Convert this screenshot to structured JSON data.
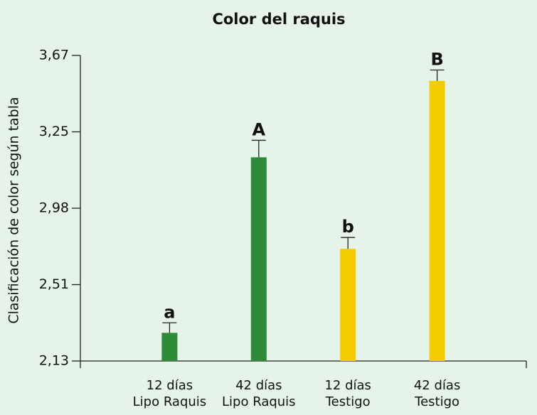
{
  "chart_data": {
    "type": "bar",
    "title": "Color del raquis",
    "y_label": "Clasificación de color según tabla",
    "categories": [
      [
        "12 días",
        "Lipo Raquis"
      ],
      [
        "42 días",
        "Lipo Raquis"
      ],
      [
        "12 días",
        "Testigo"
      ],
      [
        "42 días",
        "Testigo"
      ]
    ],
    "values": [
      2.27,
      3.16,
      2.73,
      3.53
    ],
    "errors": [
      0.05,
      0.06,
      0.07,
      0.06
    ],
    "annotations": [
      "a",
      "A",
      "b",
      "B"
    ],
    "colors": [
      "#2e8b37",
      "#2e8b37",
      "#f2cb00",
      "#f2cb00"
    ],
    "ylim": [
      2.13,
      3.67
    ],
    "yticks": [
      {
        "value": 2.13,
        "label": "2,13"
      },
      {
        "value": 2.51,
        "label": "2,51"
      },
      {
        "value": 2.98,
        "label": "2,98"
      },
      {
        "value": 3.25,
        "label": "3,25"
      },
      {
        "value": 3.67,
        "label": "3,67"
      }
    ],
    "grid": false
  }
}
